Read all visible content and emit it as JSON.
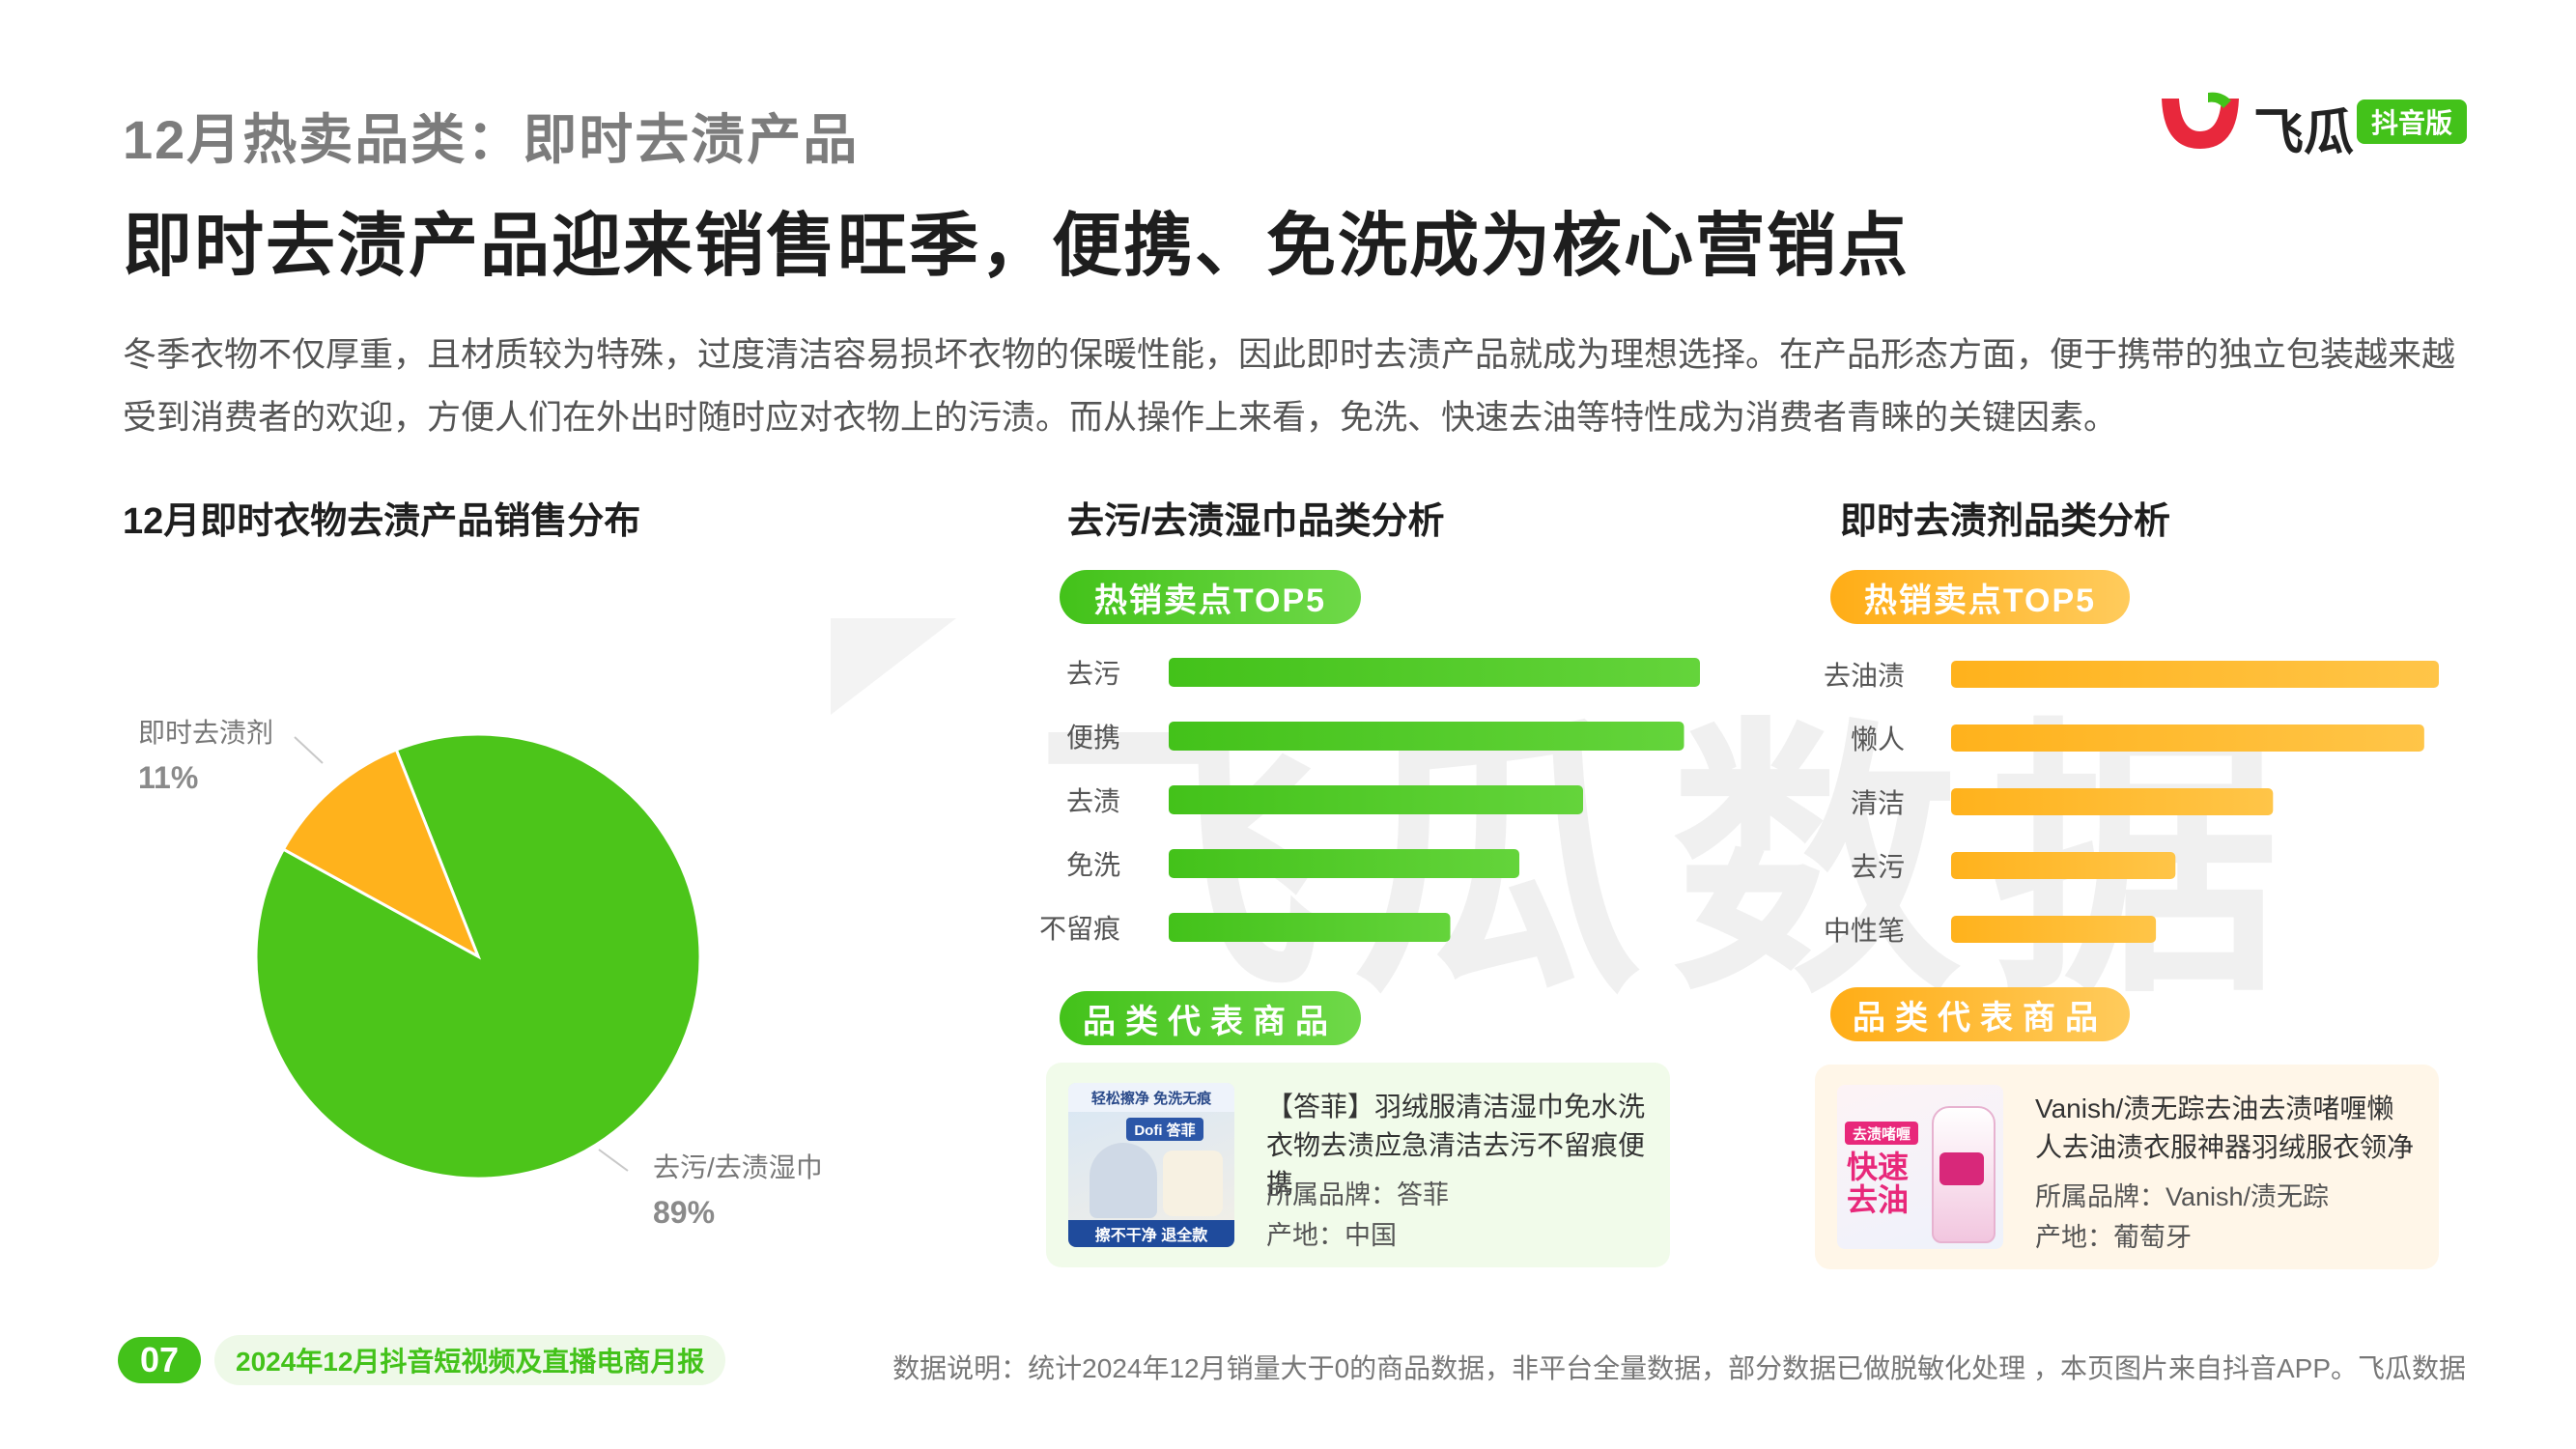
{
  "header": {
    "eyebrow": "12月热卖品类：即时去渍产品",
    "title": "即时去渍产品迎来销售旺季，便携、免洗成为核心营销点",
    "description": "冬季衣物不仅厚重，且材质较为特殊，过度清洁容易损坏衣物的保暖性能，因此即时去渍产品就成为理想选择。在产品形态方面，便于携带的独立包装越来越受到消费者的欢迎，方便人们在外出时随时应对衣物上的污渍。而从操作上来看，免洗、快速去油等特性成为消费者青睐的关键因素。"
  },
  "logo": {
    "name": "飞瓜",
    "badge": "抖音版",
    "icon": "melon-logo-icon",
    "color": "#e8283c"
  },
  "watermark": "飞瓜数据",
  "colors": {
    "green": "#43c21a",
    "orange": "#ffb21c"
  },
  "left_panel": {
    "title": "12月即时衣物去渍产品销售分布"
  },
  "middle_panel": {
    "title": "去污/去渍湿巾品类分析",
    "pill_top5": "热销卖点TOP5",
    "pill_products": "品类代表商品",
    "product": {
      "name": "【答菲】羽绒服清洁湿巾免水洗衣物去渍应急清洁去污不留痕便携",
      "brand": "所属品牌：答菲",
      "origin": "产地：中国",
      "image_texts": [
        "轻松擦净 免洗无痕",
        "Dofi 答菲",
        "擦不干净 退全款"
      ]
    }
  },
  "right_panel": {
    "title": "即时去渍剂品类分析",
    "pill_top5": "热销卖点TOP5",
    "pill_products": "品类代表商品",
    "product": {
      "name": "Vanish/渍无踪去油去渍啫喱懒人去油渍衣服神器羽绒服衣领净",
      "brand": "所属品牌：Vanish/渍无踪",
      "origin": "产地：葡萄牙",
      "image_texts": [
        "去渍啫喱",
        "快速",
        "去油"
      ]
    }
  },
  "footer": {
    "page": "07",
    "report": "2024年12月抖音短视频及直播电商月报",
    "note": "数据说明：统计2024年12月销量大于0的商品数据，非平台全量数据，部分数据已做脱敏化处理 ，本页图片来自抖音APP。飞瓜数据"
  },
  "chart_data": [
    {
      "type": "pie",
      "title": "12月即时衣物去渍产品销售分布",
      "labels": [
        "去污/去渍湿巾",
        "即时去渍剂"
      ],
      "values": [
        89,
        11
      ],
      "display": [
        "89%",
        "11%"
      ],
      "colors": [
        "#4cc51a",
        "#ffb21c"
      ]
    },
    {
      "type": "bar",
      "orientation": "horizontal",
      "title": "热销卖点TOP5",
      "categories": [
        "去污",
        "便携",
        "去渍",
        "免洗",
        "不留痕"
      ],
      "values": [
        100,
        97,
        78,
        66,
        53
      ],
      "color": "#43c21a",
      "axis": "none"
    },
    {
      "type": "bar",
      "orientation": "horizontal",
      "title": "热销卖点TOP5",
      "categories": [
        "去油渍",
        "懒人",
        "清洁",
        "去污",
        "中性笔"
      ],
      "values": [
        100,
        97,
        66,
        46,
        42
      ],
      "color": "#ffb21c",
      "axis": "none"
    }
  ]
}
